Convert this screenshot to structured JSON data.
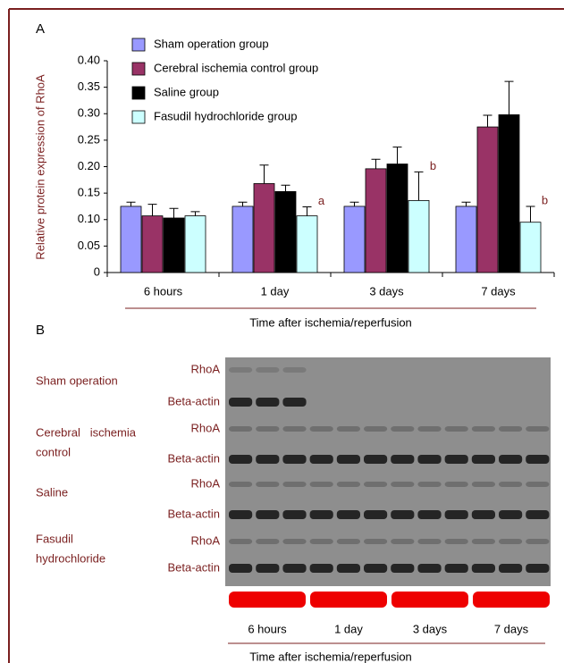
{
  "chart_data": {
    "type": "bar",
    "panel_label": "A",
    "ylabel": "Relative protein expression of RhoA",
    "xlabel": "Time after ischemia/reperfusion",
    "categories": [
      "6 hours",
      "1 day",
      "3 days",
      "7 days"
    ],
    "ylim": [
      0,
      0.4
    ],
    "yticks": [
      0,
      0.05,
      {
        "value": 0.1,
        "label": "0.10"
      },
      0.15,
      {
        "value": 0.2,
        "label": "0.20"
      },
      0.25,
      {
        "value": 0.3,
        "label": "0.30"
      },
      0.35,
      {
        "value": 0.4,
        "label": "0.40"
      }
    ],
    "series": [
      {
        "name": "Sham operation group",
        "color": "#9999ff",
        "values": [
          0.125,
          0.125,
          0.125,
          0.125
        ],
        "errors": [
          0.008,
          0.008,
          0.008,
          0.008
        ]
      },
      {
        "name": "Cerebral ischemia control group",
        "color": "#993366",
        "values": [
          0.107,
          0.168,
          0.196,
          0.275
        ],
        "errors": [
          0.022,
          0.035,
          0.018,
          0.022
        ]
      },
      {
        "name": "Saline group",
        "color": "#000000",
        "values": [
          0.103,
          0.153,
          0.205,
          0.298
        ],
        "errors": [
          0.018,
          0.012,
          0.032,
          0.063
        ]
      },
      {
        "name": "Fasudil hydrochloride group",
        "color": "#ccffff",
        "values": [
          0.107,
          0.107,
          0.136,
          0.095
        ],
        "errors": [
          0.008,
          0.017,
          0.054,
          0.03
        ],
        "annotations": [
          null,
          "a",
          "b",
          "b"
        ]
      }
    ]
  },
  "panel_b": {
    "panel_label": "B",
    "groups": [
      {
        "lines": [
          "Sham operation"
        ],
        "rows": [
          "RhoA",
          "Beta-actin"
        ]
      },
      {
        "lines": [
          "Cerebral   ischemia",
          "control"
        ],
        "rows": [
          "RhoA",
          "Beta-actin"
        ]
      },
      {
        "lines": [
          "Saline"
        ],
        "rows": [
          "RhoA",
          "Beta-actin"
        ]
      },
      {
        "lines": [
          "Fasudil",
          "hydrochloride"
        ],
        "rows": [
          "RhoA",
          "Beta-actin"
        ]
      }
    ],
    "timepoints": [
      "6 hours",
      "1 day",
      "3 days",
      "7 days"
    ],
    "xlabel": "Time after ischemia/reperfusion"
  }
}
